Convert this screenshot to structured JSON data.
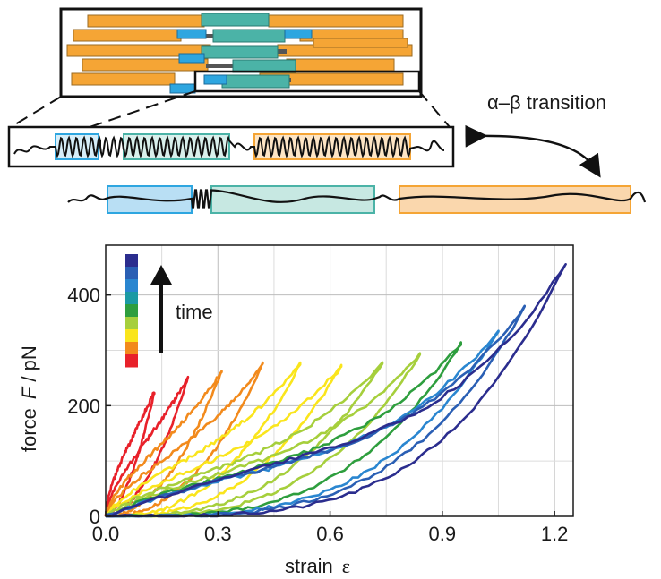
{
  "diagram": {
    "transition_label": "α–β transition"
  },
  "chart_data": {
    "type": "line",
    "xlabel_text": "strain",
    "xlabel_symbol": "ε",
    "ylabel_text": "force",
    "ylabel_symbol": "F",
    "ylabel_unit": "/ pN",
    "xlim": [
      0,
      1.25
    ],
    "ylim": [
      0,
      490
    ],
    "xticks": [
      0.0,
      0.3,
      0.6,
      0.9,
      1.2
    ],
    "xtick_labels": [
      "0.0",
      "0.3",
      "0.6",
      "0.9",
      "1.2"
    ],
    "yticks": [
      0,
      200,
      400
    ],
    "ytick_labels": [
      "0",
      "200",
      "400"
    ],
    "grid": true,
    "legend": {
      "kind": "color-bar",
      "placement": "top-left",
      "annotation": "time"
    },
    "colors": [
      "#e8212a",
      "#f28a1c",
      "#fae51c",
      "#a6cf3c",
      "#2e9e3e",
      "#1b9aa4",
      "#2a86d0",
      "#2a5fb4",
      "#2b2d8e"
    ],
    "series": [
      {
        "color": "#e8212a",
        "peak_strain": 0.22,
        "peak_force": 250
      },
      {
        "color": "#e8212a",
        "peak_strain": 0.13,
        "peak_force": 225
      },
      {
        "color": "#f28a1c",
        "peak_strain": 0.31,
        "peak_force": 262
      },
      {
        "color": "#f28a1c",
        "peak_strain": 0.42,
        "peak_force": 275
      },
      {
        "color": "#fae51c",
        "peak_strain": 0.52,
        "peak_force": 275
      },
      {
        "color": "#fae51c",
        "peak_strain": 0.63,
        "peak_force": 272
      },
      {
        "color": "#a6cf3c",
        "peak_strain": 0.74,
        "peak_force": 278
      },
      {
        "color": "#a6cf3c",
        "peak_strain": 0.84,
        "peak_force": 292
      },
      {
        "color": "#2e9e3e",
        "peak_strain": 0.95,
        "peak_force": 312
      },
      {
        "color": "#2a86d0",
        "peak_strain": 1.05,
        "peak_force": 335
      },
      {
        "color": "#2a5fb4",
        "peak_strain": 1.12,
        "peak_force": 378
      },
      {
        "color": "#2b2d8e",
        "peak_strain": 1.23,
        "peak_force": 458
      }
    ]
  }
}
